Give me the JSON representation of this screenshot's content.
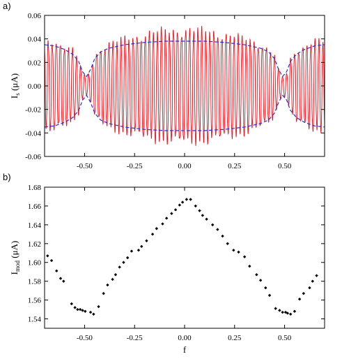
{
  "panel_labels": [
    "a)",
    "b)"
  ],
  "chart_data": [
    {
      "type": "line",
      "panel": "a)",
      "xlabel": "",
      "ylabel_main": "I",
      "ylabel_sub": "s",
      "ylabel_unit": " (μA)",
      "xlim": [
        -0.7,
        0.7
      ],
      "ylim": [
        -0.06,
        0.06
      ],
      "x_ticks": [
        -0.5,
        -0.25,
        0,
        0.25,
        0.5
      ],
      "x_tick_labels": [
        "-0.50",
        "-0.25",
        "0.00",
        "0.25",
        "0.50"
      ],
      "y_ticks": [
        -0.06,
        -0.04,
        -0.02,
        0,
        0.02,
        0.04,
        0.06
      ],
      "y_tick_labels": [
        "-0.06",
        "-0.04",
        "-0.02",
        "0.00",
        "0.02",
        "0.04",
        "0.06"
      ],
      "grid": false,
      "colors": {
        "oscillation": "#e8101a",
        "envelope": "#2233dd"
      },
      "oscillation_period": 0.0202,
      "envelope": {
        "x": [
          -0.7,
          -0.65,
          -0.6,
          -0.56,
          -0.53,
          -0.51,
          -0.49,
          -0.47,
          -0.45,
          -0.42,
          -0.38,
          -0.3,
          -0.2,
          -0.1,
          0.0,
          0.1,
          0.2,
          0.3,
          0.38,
          0.42,
          0.45,
          0.47,
          0.49,
          0.51,
          0.53,
          0.56,
          0.6,
          0.65,
          0.7
        ],
        "y": [
          0.035,
          0.034,
          0.031,
          0.027,
          0.021,
          0.012,
          0.008,
          0.014,
          0.023,
          0.029,
          0.032,
          0.035,
          0.037,
          0.038,
          0.038,
          0.038,
          0.037,
          0.035,
          0.032,
          0.029,
          0.023,
          0.014,
          0.008,
          0.012,
          0.021,
          0.027,
          0.031,
          0.034,
          0.035
        ]
      },
      "amplitude": {
        "x": [
          -0.7,
          -0.65,
          -0.6,
          -0.56,
          -0.53,
          -0.51,
          -0.49,
          -0.47,
          -0.45,
          -0.42,
          -0.38,
          -0.3,
          -0.2,
          -0.1,
          0.0,
          0.1,
          0.2,
          0.3,
          0.38,
          0.42,
          0.45,
          0.47,
          0.49,
          0.51,
          0.53,
          0.56,
          0.6,
          0.65,
          0.7
        ],
        "y": [
          0.039,
          0.04,
          0.036,
          0.032,
          0.024,
          0.011,
          0.008,
          0.014,
          0.027,
          0.033,
          0.037,
          0.042,
          0.046,
          0.049,
          0.05,
          0.049,
          0.046,
          0.042,
          0.037,
          0.033,
          0.027,
          0.014,
          0.008,
          0.011,
          0.024,
          0.032,
          0.036,
          0.04,
          0.039
        ]
      }
    },
    {
      "type": "scatter",
      "panel": "b)",
      "xlabel": "f",
      "ylabel_main": "I",
      "ylabel_sub": "mod",
      "ylabel_unit": " (μA)",
      "xlim": [
        -0.7,
        0.7
      ],
      "ylim": [
        1.53,
        1.68
      ],
      "x_ticks": [
        -0.5,
        -0.25,
        0,
        0.25,
        0.5
      ],
      "x_tick_labels": [
        "-0.50",
        "-0.25",
        "0.00",
        "0.25",
        "0.50"
      ],
      "y_ticks": [
        1.54,
        1.56,
        1.58,
        1.6,
        1.62,
        1.64,
        1.66,
        1.68
      ],
      "y_tick_labels": [
        "1.54",
        "1.56",
        "1.58",
        "1.60",
        "1.62",
        "1.64",
        "1.66",
        "1.68"
      ],
      "grid": false,
      "colors": {
        "points": "#000000"
      },
      "points": [
        [
          -0.685,
          1.607
        ],
        [
          -0.665,
          1.602
        ],
        [
          -0.64,
          1.591
        ],
        [
          -0.62,
          1.583
        ],
        [
          -0.605,
          1.58
        ],
        [
          -0.565,
          1.556
        ],
        [
          -0.548,
          1.552
        ],
        [
          -0.535,
          1.55
        ],
        [
          -0.522,
          1.55
        ],
        [
          -0.51,
          1.549
        ],
        [
          -0.497,
          1.548
        ],
        [
          -0.47,
          1.547
        ],
        [
          -0.455,
          1.545
        ],
        [
          -0.43,
          1.553
        ],
        [
          -0.405,
          1.567
        ],
        [
          -0.385,
          1.576
        ],
        [
          -0.36,
          1.582
        ],
        [
          -0.345,
          1.587
        ],
        [
          -0.325,
          1.595
        ],
        [
          -0.305,
          1.6
        ],
        [
          -0.285,
          1.605
        ],
        [
          -0.265,
          1.612
        ],
        [
          -0.23,
          1.613
        ],
        [
          -0.215,
          1.617
        ],
        [
          -0.19,
          1.623
        ],
        [
          -0.16,
          1.63
        ],
        [
          -0.14,
          1.636
        ],
        [
          -0.11,
          1.641
        ],
        [
          -0.09,
          1.647
        ],
        [
          -0.065,
          1.652
        ],
        [
          -0.045,
          1.656
        ],
        [
          -0.025,
          1.661
        ],
        [
          -0.01,
          1.664
        ],
        [
          0.01,
          1.667
        ],
        [
          0.03,
          1.667
        ],
        [
          0.055,
          1.66
        ],
        [
          0.075,
          1.655
        ],
        [
          0.09,
          1.65
        ],
        [
          0.11,
          1.646
        ],
        [
          0.14,
          1.64
        ],
        [
          0.165,
          1.635
        ],
        [
          0.19,
          1.628
        ],
        [
          0.215,
          1.62
        ],
        [
          0.245,
          1.613
        ],
        [
          0.27,
          1.611
        ],
        [
          0.3,
          1.606
        ],
        [
          0.325,
          1.596
        ],
        [
          0.36,
          1.587
        ],
        [
          0.38,
          1.581
        ],
        [
          0.405,
          1.573
        ],
        [
          0.425,
          1.565
        ],
        [
          0.455,
          1.551
        ],
        [
          0.475,
          1.549
        ],
        [
          0.49,
          1.547
        ],
        [
          0.505,
          1.547
        ],
        [
          0.515,
          1.546
        ],
        [
          0.53,
          1.545
        ],
        [
          0.55,
          1.548
        ],
        [
          0.575,
          1.561
        ],
        [
          0.595,
          1.567
        ],
        [
          0.625,
          1.573
        ],
        [
          0.64,
          1.58
        ],
        [
          0.66,
          1.586
        ]
      ]
    }
  ]
}
